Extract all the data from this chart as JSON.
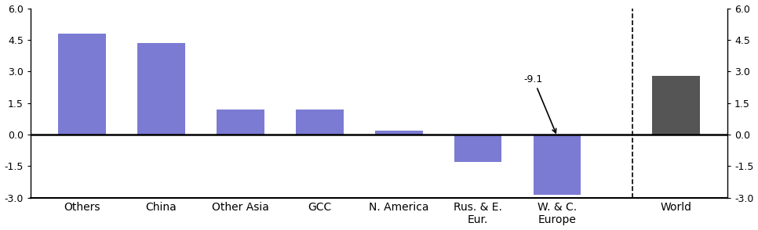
{
  "categories": [
    "Others",
    "China",
    "Other Asia",
    "GCC",
    "N. America",
    "Rus. & E.\nEur.",
    "W. & C.\nEurope"
  ],
  "values": [
    4.8,
    4.35,
    1.2,
    1.2,
    0.2,
    -1.3,
    -2.85
  ],
  "bar_color": "#7B7BD4",
  "world_value": 2.8,
  "world_color": "#555555",
  "world_label": "World",
  "ylim": [
    -3.0,
    6.0
  ],
  "yticks": [
    -3.0,
    -1.5,
    0.0,
    1.5,
    3.0,
    4.5,
    6.0
  ],
  "annotation_text": "-9.1",
  "annotation_bar_idx": 6
}
